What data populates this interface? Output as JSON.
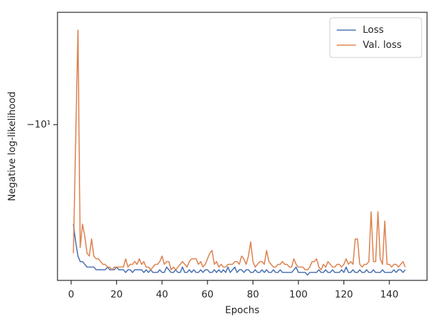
{
  "chart_data": {
    "type": "line",
    "xlabel": "Epochs",
    "ylabel": "Negative log-likelihood",
    "x": [
      1,
      2,
      3,
      4,
      5,
      6,
      7,
      8,
      9,
      10,
      11,
      12,
      13,
      14,
      15,
      16,
      17,
      18,
      19,
      20,
      21,
      22,
      23,
      24,
      25,
      26,
      27,
      28,
      29,
      30,
      31,
      32,
      33,
      34,
      35,
      36,
      37,
      38,
      39,
      40,
      41,
      42,
      43,
      44,
      45,
      46,
      47,
      48,
      49,
      50,
      51,
      52,
      53,
      54,
      55,
      56,
      57,
      58,
      59,
      60,
      61,
      62,
      63,
      64,
      65,
      66,
      67,
      68,
      69,
      70,
      71,
      72,
      73,
      74,
      75,
      76,
      77,
      78,
      79,
      80,
      81,
      82,
      83,
      84,
      85,
      86,
      87,
      88,
      89,
      90,
      91,
      92,
      93,
      94,
      95,
      96,
      97,
      98,
      99,
      100,
      101,
      102,
      103,
      104,
      105,
      106,
      107,
      108,
      109,
      110,
      111,
      112,
      113,
      114,
      115,
      116,
      117,
      118,
      119,
      120,
      121,
      122,
      123,
      124,
      125,
      126,
      127,
      128,
      129,
      130,
      131,
      132,
      133,
      134,
      135,
      136,
      137,
      138,
      139,
      140,
      141,
      142,
      143,
      144,
      145,
      146,
      147
    ],
    "series": [
      {
        "name": "Loss",
        "color": "#4c72b0",
        "values": [
          -12.9,
          -13.5,
          -14.0,
          -14.2,
          -14.2,
          -14.3,
          -14.4,
          -14.4,
          -14.4,
          -14.4,
          -14.5,
          -14.5,
          -14.5,
          -14.5,
          -14.5,
          -14.4,
          -14.5,
          -14.5,
          -14.5,
          -14.4,
          -14.5,
          -14.5,
          -14.5,
          -14.6,
          -14.5,
          -14.5,
          -14.6,
          -14.5,
          -14.5,
          -14.5,
          -14.5,
          -14.6,
          -14.5,
          -14.6,
          -14.5,
          -14.6,
          -14.6,
          -14.6,
          -14.5,
          -14.6,
          -14.6,
          -14.4,
          -14.5,
          -14.6,
          -14.6,
          -14.5,
          -14.6,
          -14.6,
          -14.4,
          -14.6,
          -14.6,
          -14.5,
          -14.6,
          -14.5,
          -14.6,
          -14.6,
          -14.5,
          -14.6,
          -14.5,
          -14.5,
          -14.6,
          -14.6,
          -14.5,
          -14.6,
          -14.5,
          -14.6,
          -14.5,
          -14.6,
          -14.4,
          -14.6,
          -14.5,
          -14.4,
          -14.6,
          -14.5,
          -14.5,
          -14.6,
          -14.5,
          -14.5,
          -14.6,
          -14.6,
          -14.5,
          -14.6,
          -14.6,
          -14.5,
          -14.6,
          -14.5,
          -14.6,
          -14.6,
          -14.5,
          -14.6,
          -14.6,
          -14.5,
          -14.6,
          -14.6,
          -14.6,
          -14.6,
          -14.6,
          -14.5,
          -14.4,
          -14.6,
          -14.6,
          -14.6,
          -14.6,
          -14.7,
          -14.6,
          -14.6,
          -14.6,
          -14.6,
          -14.5,
          -14.6,
          -14.6,
          -14.5,
          -14.6,
          -14.6,
          -14.5,
          -14.6,
          -14.6,
          -14.6,
          -14.5,
          -14.6,
          -14.4,
          -14.6,
          -14.6,
          -14.5,
          -14.6,
          -14.6,
          -14.5,
          -14.6,
          -14.6,
          -14.5,
          -14.6,
          -14.6,
          -14.5,
          -14.6,
          -14.6,
          -14.6,
          -14.5,
          -14.6,
          -14.6,
          -14.6,
          -14.6,
          -14.5,
          -14.6,
          -14.5,
          -14.5,
          -14.6,
          -14.5
        ]
      },
      {
        "name": "Val. loss",
        "color": "#dd8452",
        "values": [
          -13.9,
          -10.4,
          -7.85,
          -13.7,
          -12.9,
          -13.3,
          -13.9,
          -14.0,
          -13.4,
          -14.0,
          -14.1,
          -14.1,
          -14.2,
          -14.3,
          -14.3,
          -14.4,
          -14.4,
          -14.5,
          -14.4,
          -14.4,
          -14.4,
          -14.4,
          -14.4,
          -14.1,
          -14.4,
          -14.3,
          -14.3,
          -14.2,
          -14.3,
          -14.1,
          -14.3,
          -14.2,
          -14.4,
          -14.4,
          -14.5,
          -14.4,
          -14.3,
          -14.3,
          -14.2,
          -14.0,
          -14.3,
          -14.2,
          -14.2,
          -14.5,
          -14.4,
          -14.5,
          -14.4,
          -14.3,
          -14.2,
          -14.3,
          -14.4,
          -14.2,
          -14.1,
          -14.1,
          -14.1,
          -14.3,
          -14.2,
          -14.4,
          -14.3,
          -14.1,
          -13.9,
          -13.8,
          -14.3,
          -14.2,
          -14.4,
          -14.3,
          -14.4,
          -14.4,
          -14.3,
          -14.3,
          -14.3,
          -14.2,
          -14.2,
          -14.3,
          -14.0,
          -14.1,
          -14.3,
          -14.0,
          -13.5,
          -14.2,
          -14.4,
          -14.3,
          -14.2,
          -14.2,
          -14.3,
          -13.8,
          -14.2,
          -14.3,
          -14.4,
          -14.4,
          -14.3,
          -14.3,
          -14.2,
          -14.3,
          -14.3,
          -14.4,
          -14.4,
          -14.1,
          -14.3,
          -14.4,
          -14.4,
          -14.4,
          -14.5,
          -14.5,
          -14.4,
          -14.2,
          -14.2,
          -14.1,
          -14.4,
          -14.5,
          -14.3,
          -14.4,
          -14.2,
          -14.3,
          -14.4,
          -14.4,
          -14.3,
          -14.3,
          -14.4,
          -14.3,
          -14.1,
          -14.3,
          -14.2,
          -14.3,
          -13.4,
          -13.4,
          -14.3,
          -14.4,
          -14.3,
          -14.3,
          -14.2,
          -12.5,
          -14.2,
          -14.2,
          -12.5,
          -14.1,
          -14.3,
          -12.8,
          -14.3,
          -14.3,
          -14.4,
          -14.3,
          -14.3,
          -14.4,
          -14.3,
          -14.2,
          -14.4
        ]
      }
    ],
    "xlim": [
      -6,
      156.6
    ],
    "xticks": [
      0,
      20,
      40,
      60,
      80,
      100,
      120,
      140
    ],
    "ylim": [
      -14.9,
      -7.5
    ],
    "yticks": [
      {
        "value": -10,
        "label": "−10¹"
      }
    ],
    "yscale": "symlog",
    "linthresh": 1,
    "legend": "upper right"
  }
}
